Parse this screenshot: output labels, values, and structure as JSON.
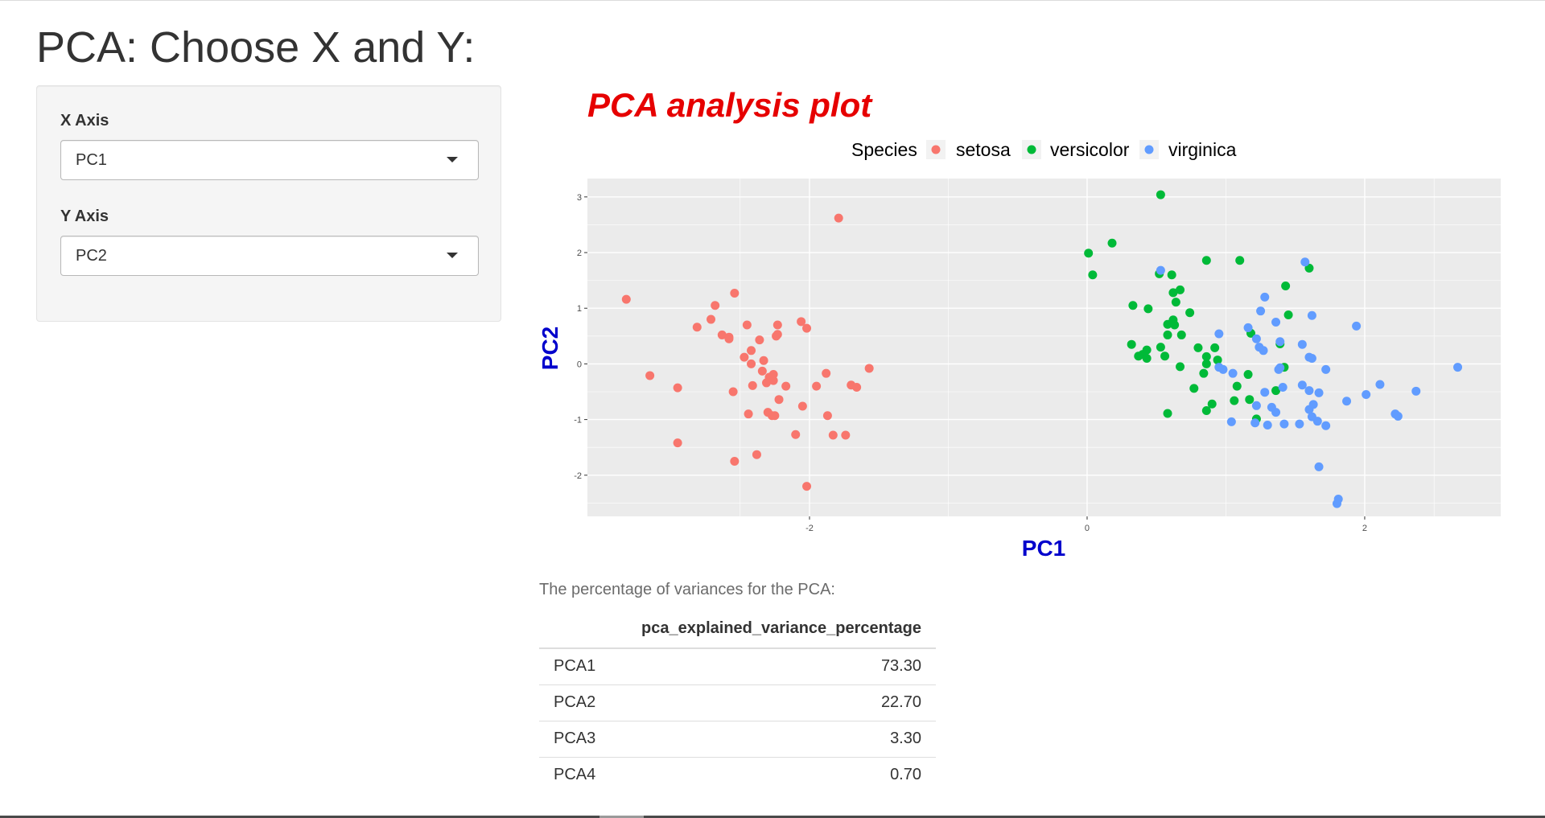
{
  "page": {
    "title": "PCA: Choose X and Y:"
  },
  "sidebar": {
    "x_axis": {
      "label": "X Axis",
      "selected": "PC1"
    },
    "y_axis": {
      "label": "Y Axis",
      "selected": "PC2"
    }
  },
  "colors": {
    "title": "#e60000",
    "axis_title": "#0000cc",
    "panel_bg": "#ebebeb",
    "grid": "#ffffff",
    "setosa": "#f8766d",
    "versicolor": "#00ba38",
    "virginica": "#619cff"
  },
  "chart_data": {
    "type": "scatter",
    "title": "PCA analysis plot",
    "xlabel": "PC1",
    "ylabel": "PC2",
    "xlim": [
      -3.6,
      2.98
    ],
    "ylim": [
      -2.74,
      3.33
    ],
    "x_ticks": [
      "-2",
      "0",
      "2"
    ],
    "y_ticks": [
      "-2",
      "-1",
      "0",
      "1",
      "2",
      "3"
    ],
    "x_tick_values": [
      -2,
      0,
      2
    ],
    "y_tick_values": [
      -2,
      -1,
      0,
      1,
      2,
      3
    ],
    "grid": true,
    "legend": {
      "title": "Species",
      "position": "top"
    },
    "series": [
      {
        "name": "setosa",
        "points": [
          [
            -3.32,
            1.16
          ],
          [
            -1.79,
            2.62
          ],
          [
            -3.15,
            -0.21
          ],
          [
            -2.95,
            -0.43
          ],
          [
            -2.95,
            -1.42
          ],
          [
            -2.81,
            0.66
          ],
          [
            -2.68,
            1.05
          ],
          [
            -2.71,
            0.8
          ],
          [
            -2.54,
            1.27
          ],
          [
            -2.63,
            0.52
          ],
          [
            -2.58,
            0.48
          ],
          [
            -2.58,
            0.45
          ],
          [
            -2.45,
            0.7
          ],
          [
            -2.42,
            0.24
          ],
          [
            -2.47,
            0.12
          ],
          [
            -2.42,
            0.0
          ],
          [
            -2.36,
            0.43
          ],
          [
            -2.33,
            0.06
          ],
          [
            -2.34,
            -0.13
          ],
          [
            -2.29,
            -0.24
          ],
          [
            -2.31,
            -0.34
          ],
          [
            -2.26,
            -0.3
          ],
          [
            -2.26,
            -0.19
          ],
          [
            -2.41,
            -0.39
          ],
          [
            -2.55,
            -0.5
          ],
          [
            -2.23,
            0.7
          ],
          [
            -2.23,
            0.53
          ],
          [
            -2.24,
            0.5
          ],
          [
            -2.06,
            0.76
          ],
          [
            -2.02,
            0.64
          ],
          [
            -2.17,
            -0.4
          ],
          [
            -2.22,
            -0.64
          ],
          [
            -2.3,
            -0.87
          ],
          [
            -2.27,
            -0.93
          ],
          [
            -2.25,
            -0.93
          ],
          [
            -2.44,
            -0.9
          ],
          [
            -2.05,
            -0.76
          ],
          [
            -2.1,
            -1.27
          ],
          [
            -1.95,
            -0.4
          ],
          [
            -1.88,
            -0.17
          ],
          [
            -1.57,
            -0.08
          ],
          [
            -1.7,
            -0.38
          ],
          [
            -1.66,
            -0.42
          ],
          [
            -1.87,
            -0.93
          ],
          [
            -1.83,
            -1.28
          ],
          [
            -1.74,
            -1.28
          ],
          [
            -2.54,
            -1.75
          ],
          [
            -2.38,
            -1.63
          ],
          [
            -2.02,
            -2.2
          ]
        ]
      },
      {
        "name": "versicolor",
        "points": [
          [
            0.53,
            3.04
          ],
          [
            0.18,
            2.17
          ],
          [
            0.01,
            1.99
          ],
          [
            0.04,
            1.6
          ],
          [
            0.86,
            1.86
          ],
          [
            1.1,
            1.86
          ],
          [
            1.6,
            1.72
          ],
          [
            0.52,
            1.62
          ],
          [
            0.61,
            1.6
          ],
          [
            1.43,
            1.4
          ],
          [
            0.67,
            1.33
          ],
          [
            0.62,
            1.28
          ],
          [
            0.64,
            1.11
          ],
          [
            0.33,
            1.05
          ],
          [
            0.44,
            0.99
          ],
          [
            0.74,
            0.92
          ],
          [
            1.45,
            0.88
          ],
          [
            0.62,
            0.79
          ],
          [
            0.58,
            0.71
          ],
          [
            0.63,
            0.7
          ],
          [
            1.18,
            0.55
          ],
          [
            0.58,
            0.52
          ],
          [
            0.68,
            0.52
          ],
          [
            0.32,
            0.35
          ],
          [
            0.53,
            0.3
          ],
          [
            0.8,
            0.29
          ],
          [
            0.92,
            0.29
          ],
          [
            1.39,
            0.36
          ],
          [
            0.43,
            0.25
          ],
          [
            0.4,
            0.17
          ],
          [
            0.37,
            0.14
          ],
          [
            0.43,
            0.1
          ],
          [
            0.56,
            0.14
          ],
          [
            0.86,
            0.13
          ],
          [
            0.94,
            0.07
          ],
          [
            0.86,
            0.0
          ],
          [
            0.67,
            -0.05
          ],
          [
            1.42,
            -0.06
          ],
          [
            1.16,
            -0.19
          ],
          [
            0.77,
            -0.44
          ],
          [
            1.08,
            -0.4
          ],
          [
            0.84,
            -0.17
          ],
          [
            1.36,
            -0.48
          ],
          [
            0.9,
            -0.72
          ],
          [
            1.17,
            -0.64
          ],
          [
            1.06,
            -0.66
          ],
          [
            0.86,
            -0.84
          ],
          [
            0.58,
            -0.89
          ],
          [
            1.22,
            -0.99
          ]
        ]
      },
      {
        "name": "virginica",
        "points": [
          [
            0.53,
            1.68
          ],
          [
            1.57,
            1.83
          ],
          [
            1.28,
            1.2
          ],
          [
            1.36,
            0.75
          ],
          [
            1.55,
            0.35
          ],
          [
            1.16,
            0.65
          ],
          [
            1.22,
            0.45
          ],
          [
            1.39,
            0.4
          ],
          [
            1.24,
            0.3
          ],
          [
            1.27,
            0.24
          ],
          [
            1.6,
            0.12
          ],
          [
            1.62,
            0.1
          ],
          [
            0.95,
            -0.06
          ],
          [
            0.98,
            -0.1
          ],
          [
            1.05,
            -0.17
          ],
          [
            1.39,
            -0.07
          ],
          [
            1.38,
            -0.1
          ],
          [
            1.55,
            -0.38
          ],
          [
            1.41,
            -0.42
          ],
          [
            1.6,
            -0.48
          ],
          [
            1.67,
            -0.52
          ],
          [
            1.28,
            -0.51
          ],
          [
            1.22,
            -0.75
          ],
          [
            1.33,
            -0.78
          ],
          [
            1.36,
            -0.87
          ],
          [
            1.63,
            -0.73
          ],
          [
            1.6,
            -0.82
          ],
          [
            1.62,
            -0.95
          ],
          [
            1.66,
            -1.03
          ],
          [
            1.04,
            -1.04
          ],
          [
            1.21,
            -1.06
          ],
          [
            1.3,
            -1.1
          ],
          [
            1.42,
            -1.08
          ],
          [
            1.53,
            -1.08
          ],
          [
            1.72,
            -1.11
          ],
          [
            1.87,
            -0.67
          ],
          [
            2.01,
            -0.55
          ],
          [
            2.11,
            -0.37
          ],
          [
            2.37,
            -0.49
          ],
          [
            2.67,
            -0.06
          ],
          [
            2.22,
            -0.9
          ],
          [
            2.24,
            -0.94
          ],
          [
            1.62,
            0.87
          ],
          [
            1.94,
            0.68
          ],
          [
            1.67,
            -1.85
          ],
          [
            1.81,
            -2.43
          ],
          [
            1.8,
            -2.51
          ],
          [
            0.95,
            0.54
          ],
          [
            1.25,
            0.95
          ],
          [
            1.72,
            -0.1
          ]
        ]
      }
    ]
  },
  "variance": {
    "caption": "The percentage of variances for the PCA:",
    "header_blank": "",
    "header_value": "pca_explained_variance_percentage",
    "rows": [
      {
        "name": "PCA1",
        "value": "73.30"
      },
      {
        "name": "PCA2",
        "value": "22.70"
      },
      {
        "name": "PCA3",
        "value": "3.30"
      },
      {
        "name": "PCA4",
        "value": "0.70"
      }
    ]
  }
}
